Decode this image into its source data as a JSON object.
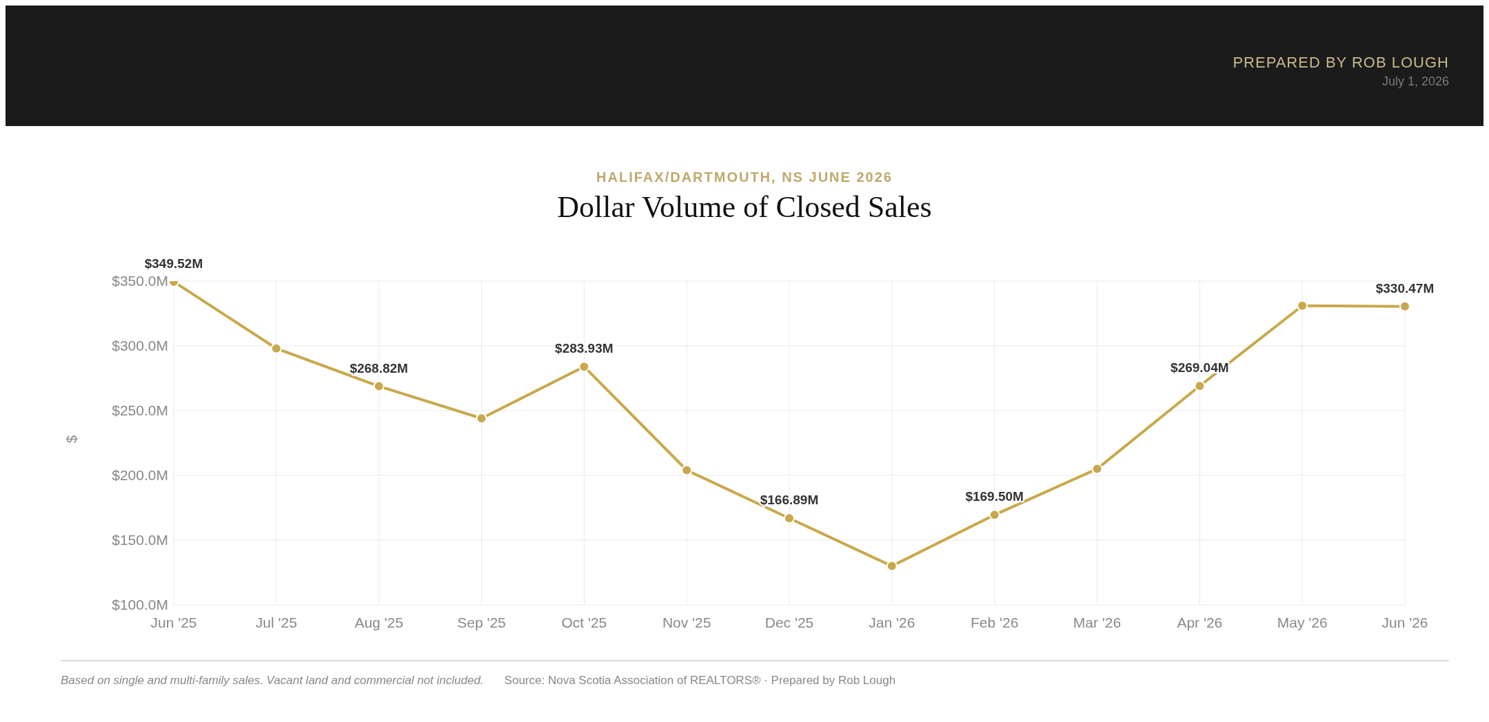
{
  "chart_data": {
    "type": "line",
    "subtitle": "HALIFAX/DARTMOUTH, NS JUNE 2026",
    "title": "Dollar Volume of Closed Sales",
    "ylabel": "$",
    "annotations": [
      "PREPARED BY ROB LOUGH",
      "July 1, 2026",
      "Based on single and multi-family sales. Vacant land and commercial not included.",
      "Source: Nova Scotia Association of REALTORS® · Prepared by Rob Lough"
    ],
    "categories": [
      "Jun '25",
      "Jul '25",
      "Aug '25",
      "Sep '25",
      "Oct '25",
      "Nov '25",
      "Dec '25",
      "Jan '26",
      "Feb '26",
      "Mar '26",
      "Apr '26",
      "May '26",
      "Jun '26"
    ],
    "series": [
      {
        "color": "#c9a84c",
        "values": [
          349.52,
          298,
          268.82,
          244,
          283.93,
          204,
          166.89,
          130,
          169.5,
          205,
          269.04,
          331,
          330.47
        ],
        "value_labels": [
          "$349.52M",
          null,
          "$268.82M",
          null,
          "$283.93M",
          null,
          "$166.89M",
          null,
          "$169.50M",
          null,
          "$269.04M",
          null,
          "$330.47M"
        ]
      }
    ],
    "ylim": [
      100,
      350
    ],
    "yticks": [
      {
        "value": 100,
        "label": "$100.0M"
      },
      {
        "value": 150,
        "label": "$150.0M"
      },
      {
        "value": 200,
        "label": "$200.0M"
      },
      {
        "value": 250,
        "label": "$250.0M"
      },
      {
        "value": 300,
        "label": "$300.0M"
      },
      {
        "value": 350,
        "label": "$350.0M"
      }
    ],
    "grid": true,
    "legend": false,
    "marker": "circle",
    "line_style": "solid"
  }
}
